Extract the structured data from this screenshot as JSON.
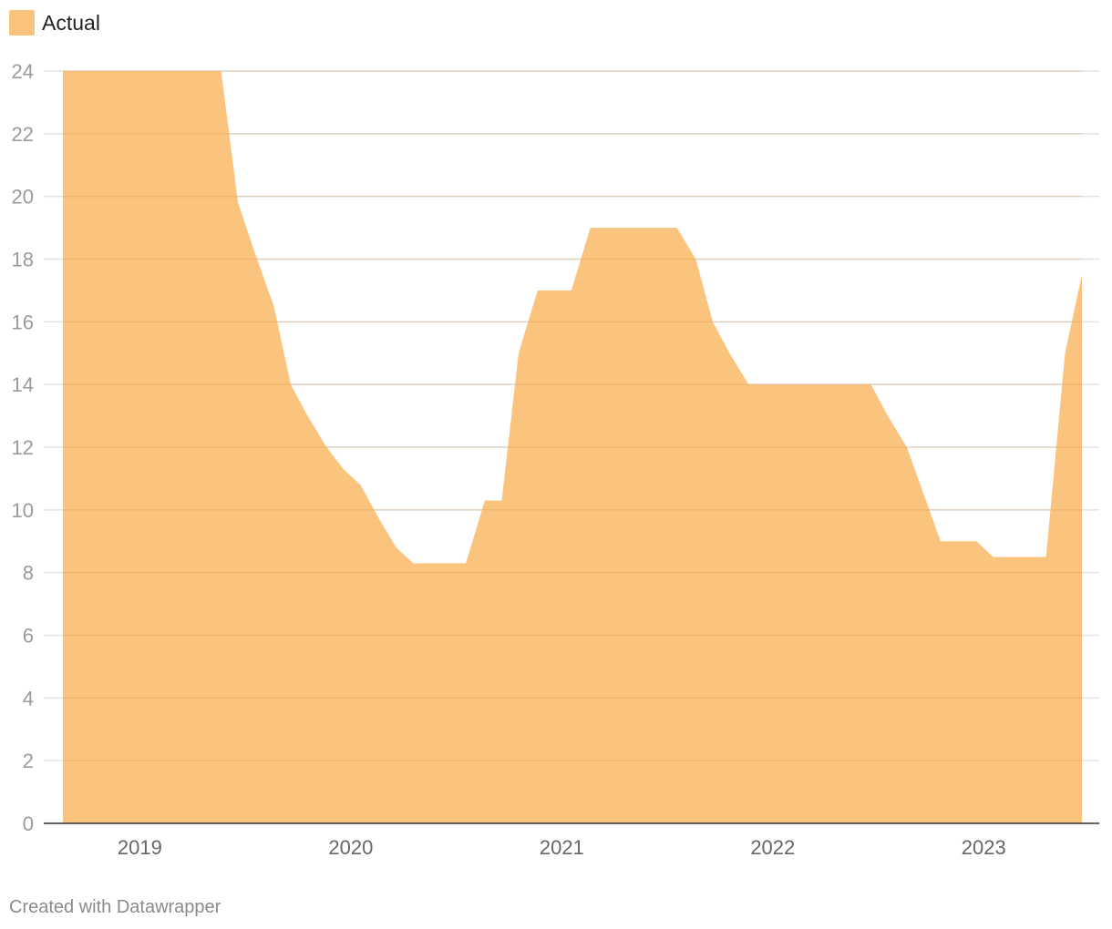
{
  "legend": {
    "label": "Actual",
    "color": "#fac47f"
  },
  "footer": {
    "credit": "Created with Datawrapper"
  },
  "chart_data": {
    "type": "area",
    "x_unit": "year",
    "x": [
      2018.67,
      2018.83,
      2019.0,
      2019.17,
      2019.33,
      2019.42,
      2019.5,
      2019.58,
      2019.67,
      2019.75,
      2019.83,
      2019.92,
      2020.0,
      2020.08,
      2020.17,
      2020.25,
      2020.33,
      2020.42,
      2020.5,
      2020.58,
      2020.67,
      2020.75,
      2020.83,
      2020.92,
      2021.0,
      2021.08,
      2021.17,
      2021.25,
      2021.33,
      2021.42,
      2021.5,
      2021.58,
      2021.67,
      2021.75,
      2021.83,
      2021.92,
      2022.0,
      2022.08,
      2022.17,
      2022.25,
      2022.33,
      2022.42,
      2022.5,
      2022.58,
      2022.67,
      2022.75,
      2022.83,
      2022.92,
      2023.0,
      2023.08,
      2023.17,
      2023.25,
      2023.33,
      2023.42,
      2023.5
    ],
    "series": [
      {
        "values": [
          24,
          24,
          24,
          24,
          24,
          24,
          19.8,
          18.2,
          16.5,
          14,
          13,
          12,
          11.3,
          10.8,
          9.7,
          8.8,
          8.3,
          8.3,
          8.3,
          8.3,
          10.3,
          10.3,
          15,
          17,
          17,
          17,
          19,
          19,
          19,
          19,
          19,
          19,
          18,
          16,
          15,
          14,
          14,
          14,
          14,
          14,
          14,
          14,
          14,
          13,
          12,
          10.5,
          9,
          9,
          9,
          8.5,
          8.5,
          8.5,
          8.5,
          15,
          17.5
        ],
        "color": "#fac47f"
      }
    ],
    "ylim": [
      0,
      24
    ],
    "yticks": [
      "0",
      "2",
      "4",
      "6",
      "8",
      "10",
      "12",
      "14",
      "16",
      "18",
      "20",
      "22",
      "24"
    ],
    "xticks": [
      {
        "value": 2019.0,
        "label": "2019"
      },
      {
        "value": 2020.0,
        "label": "2020"
      },
      {
        "value": 2021.0,
        "label": "2021"
      },
      {
        "value": 2022.0,
        "label": "2022"
      },
      {
        "value": 2023.0,
        "label": "2023"
      }
    ],
    "xlim": [
      2018.67,
      2023.5
    ],
    "grid": true,
    "legend_position": "top-left"
  }
}
